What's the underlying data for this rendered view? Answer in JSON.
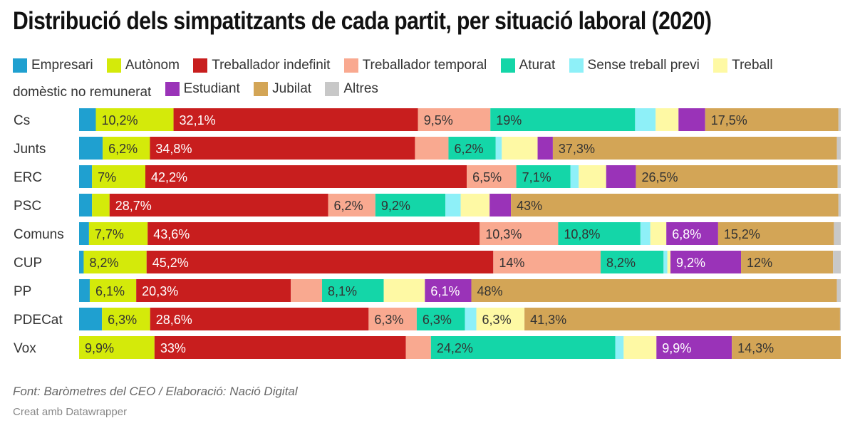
{
  "chart_data": {
    "type": "bar",
    "orientation": "horizontal",
    "stacked": "100%",
    "title": "Distribució dels simpatitzants de cada partit, per situació laboral (2020)",
    "xlim": [
      0,
      100
    ],
    "categories": [
      "Cs",
      "Junts",
      "ERC",
      "PSC",
      "Comuns",
      "CUP",
      "PP",
      "PDECat",
      "Vox"
    ],
    "series": [
      {
        "name": "Empresari",
        "color": "#1fa0d0",
        "values": [
          2.2,
          3.1,
          1.7,
          1.7,
          1.3,
          0.6,
          1.4,
          3.0,
          0
        ]
      },
      {
        "name": "Autònom",
        "color": "#d4ea0a",
        "values": [
          10.2,
          6.2,
          7,
          2.3,
          7.7,
          8.2,
          6.1,
          6.3,
          9.9
        ]
      },
      {
        "name": "Treballador indefinit",
        "color": "#c81e1e",
        "values": [
          32.1,
          34.8,
          42.2,
          28.7,
          43.6,
          45.2,
          20.3,
          28.6,
          33
        ]
      },
      {
        "name": "Treballador temporal",
        "color": "#f9a990",
        "values": [
          9.5,
          4.4,
          6.5,
          6.2,
          10.3,
          14,
          4.1,
          6.3,
          3.3
        ]
      },
      {
        "name": "Aturat",
        "color": "#14d6a8",
        "values": [
          19,
          6.2,
          7.1,
          9.2,
          10.8,
          8.2,
          8.1,
          6.3,
          24.2
        ]
      },
      {
        "name": "Sense treball previ",
        "color": "#8ef0f8",
        "values": [
          2.7,
          0.8,
          1.1,
          2.0,
          1.3,
          0.5,
          0,
          1.5,
          1.1
        ]
      },
      {
        "name": "Treball domèstic no remunerat",
        "color": "#fef9a4",
        "values": [
          3.0,
          4.7,
          3.6,
          3.8,
          2.1,
          0.4,
          5.4,
          6.3,
          4.3
        ]
      },
      {
        "name": "Estudiant",
        "color": "#9a33b8",
        "values": [
          3.5,
          2.0,
          3.9,
          2.8,
          6.8,
          9.2,
          6.1,
          0,
          9.9
        ]
      },
      {
        "name": "Jubilat",
        "color": "#d3a556",
        "values": [
          17.5,
          37.3,
          26.5,
          43,
          15.2,
          12,
          48,
          41.3,
          14.3
        ]
      },
      {
        "name": "Altres",
        "color": "#c8c8c8",
        "values": [
          0.3,
          0.5,
          0.4,
          0.3,
          0.9,
          1.0,
          0.5,
          0.1,
          0
        ]
      }
    ],
    "labels": [
      [
        "",
        "10,2%",
        "32,1%",
        "9,5%",
        "19%",
        "",
        "",
        "",
        "17,5%",
        ""
      ],
      [
        "",
        "6,2%",
        "34,8%",
        "",
        "6,2%",
        "",
        "",
        "",
        "37,3%",
        ""
      ],
      [
        "",
        "7%",
        "42,2%",
        "6,5%",
        "7,1%",
        "",
        "",
        "",
        "26,5%",
        ""
      ],
      [
        "",
        "",
        "28,7%",
        "6,2%",
        "9,2%",
        "",
        "",
        "",
        "43%",
        ""
      ],
      [
        "",
        "7,7%",
        "43,6%",
        "10,3%",
        "10,8%",
        "",
        "",
        "6,8%",
        "15,2%",
        ""
      ],
      [
        "",
        "8,2%",
        "45,2%",
        "14%",
        "8,2%",
        "",
        "",
        "9,2%",
        "12%",
        ""
      ],
      [
        "",
        "6,1%",
        "20,3%",
        "",
        "8,1%",
        "",
        "",
        "6,1%",
        "48%",
        ""
      ],
      [
        "",
        "6,3%",
        "28,6%",
        "6,3%",
        "6,3%",
        "",
        "6,3%",
        "",
        "41,3%",
        ""
      ],
      [
        "",
        "9,9%",
        "33%",
        "",
        "24,2%",
        "",
        "",
        "9,9%",
        "14,3%",
        ""
      ]
    ]
  },
  "legend": {
    "line2_text": "domèstic no remunerat"
  },
  "footer": {
    "source": "Font: Baròmetres del CEO / Elaboració: Nació Digital",
    "credit": "Creat amb Datawrapper"
  }
}
